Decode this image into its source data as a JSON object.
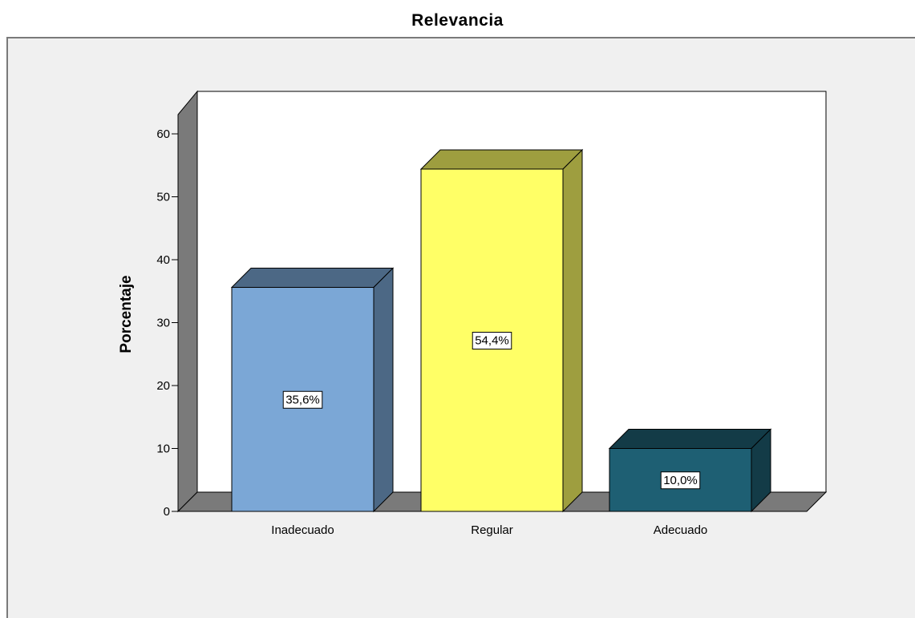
{
  "chart_data": {
    "type": "bar",
    "title": "Relevancia",
    "xlabel": "",
    "ylabel": "Porcentaje",
    "categories": [
      "Inadecuado",
      "Regular",
      "Adecuado"
    ],
    "values": [
      35.6,
      54.4,
      10.0
    ],
    "data_labels": [
      "35,6%",
      "54,4%",
      "10,0%"
    ],
    "ylim": [
      0,
      60
    ],
    "yticks": [
      0,
      10,
      20,
      30,
      40,
      50,
      60
    ],
    "bar_colors": [
      "#7ba7d6",
      "#ffff66",
      "#1e5f73"
    ],
    "style": "3d",
    "grid": false
  }
}
